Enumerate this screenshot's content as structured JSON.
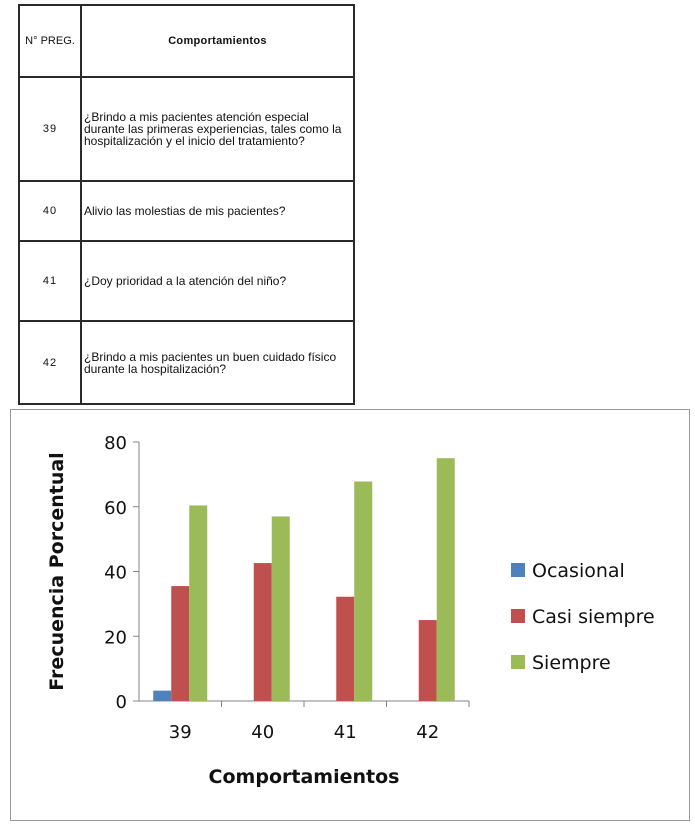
{
  "table": {
    "header_num": "N° PREG.",
    "header_text": "Comportamientos",
    "rows": [
      {
        "num": "39",
        "text": "¿Brindo a mis pacientes atención especial durante las primeras experiencias, tales como la hospitalización y el inicio del tratamiento?"
      },
      {
        "num": "40",
        "text": "Alivio las molestias de mis pacientes?"
      },
      {
        "num": "41",
        "text": "¿Doy prioridad a la atención del niño?"
      },
      {
        "num": "42",
        "text": "¿Brindo a mis pacientes un buen cuidado físico durante la hospitalización?"
      }
    ]
  },
  "chart_data": {
    "type": "bar",
    "categories": [
      "39",
      "40",
      "41",
      "42"
    ],
    "series": [
      {
        "name": "Ocasional",
        "color": "#4f81bd",
        "values": [
          3.2,
          0,
          0,
          0
        ]
      },
      {
        "name": "Casi siempre",
        "color": "#c0504d",
        "values": [
          35.5,
          42.6,
          32.2,
          25.0
        ]
      },
      {
        "name": "Siempre",
        "color": "#9bbb59",
        "values": [
          60.4,
          57.0,
          67.8,
          75.0
        ]
      }
    ],
    "title": "",
    "xlabel": "Comportamientos",
    "ylabel": "Frecuencia Porcentual",
    "ylim": [
      0,
      80
    ],
    "yticks": [
      0,
      20,
      40,
      60,
      80
    ],
    "grid": false,
    "legend": "right"
  }
}
